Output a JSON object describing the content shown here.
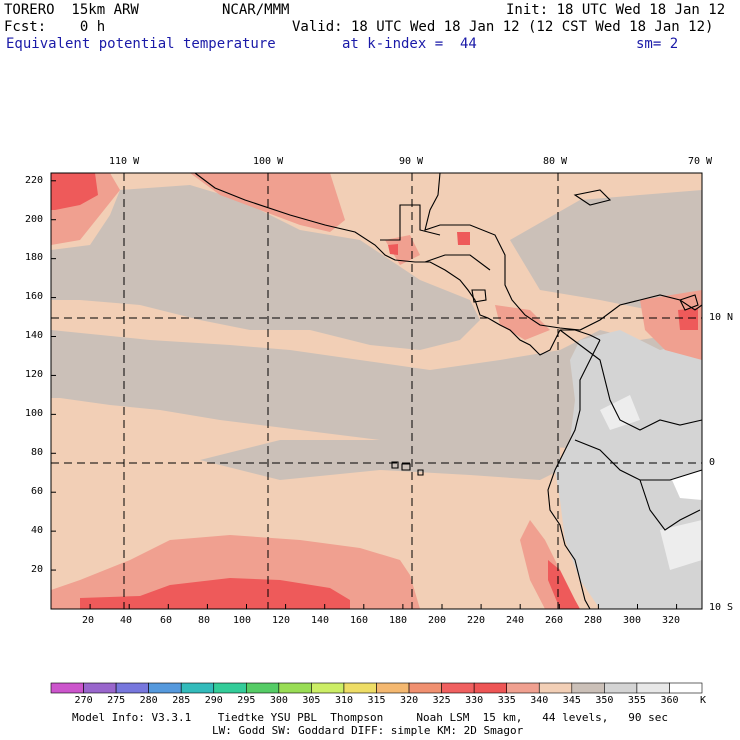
{
  "header": {
    "model": "TORERO  15km ARW",
    "center": "NCAR/MMM",
    "init": "Init: 18 UTC Wed 18 Jan 12",
    "fcst": "Fcst:    0 h",
    "valid": "Valid: 18 UTC Wed 18 Jan 12 (12 CST Wed 18 Jan 12)",
    "field": "Equivalent potential temperature",
    "level": "at k-index =  44",
    "smooth": "sm= 2"
  },
  "map": {
    "top_lon_labels": [
      "110 W",
      "100 W",
      "90 W",
      "80 W",
      "70 W"
    ],
    "right_lat_labels": [
      "10 N",
      "0",
      "10 S"
    ],
    "y_ticks": [
      "220",
      "200",
      "180",
      "160",
      "140",
      "120",
      "100",
      "80",
      "60",
      "40",
      "20"
    ],
    "x_ticks": [
      "20",
      "40",
      "60",
      "80",
      "100",
      "120",
      "140",
      "160",
      "180",
      "200",
      "220",
      "240",
      "260",
      "280",
      "300",
      "320"
    ],
    "x_range": [
      0,
      333
    ],
    "y_range": [
      0,
      224
    ],
    "dashed_x": [
      40,
      113,
      185,
      260
    ],
    "dashed_y": [
      150,
      76
    ]
  },
  "colorbar": {
    "unit": "K",
    "labels": [
      "270",
      "275",
      "280",
      "285",
      "290",
      "295",
      "300",
      "305",
      "310",
      "315",
      "320",
      "325",
      "330",
      "335",
      "340",
      "345",
      "350",
      "355",
      "360"
    ],
    "colors": [
      "#cc55cc",
      "#9966cc",
      "#7777dd",
      "#5599dd",
      "#33bbbb",
      "#33cc99",
      "#55cc66",
      "#99dd55",
      "#ccee66",
      "#eedd66",
      "#f4b870",
      "#f09070",
      "#f06060",
      "#ee5555",
      "#f0a090",
      "#f2cfb6",
      "#cbc0b8",
      "#d4d4d4",
      "#e8e8e8",
      "#ffffff"
    ]
  },
  "footer": {
    "line1": "Model Info: V3.3.1    Tiedtke YSU PBL  Thompson     Noah LSM  15 km,   44 levels,   90 sec",
    "line2": "LW: Godd SW: Goddard DIFF: simple KM: 2D Smagor"
  }
}
